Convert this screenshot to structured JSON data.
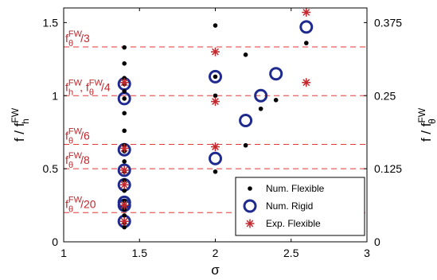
{
  "chart_data": {
    "type": "scatter",
    "xlabel": "σ",
    "ylabel": {
      "base": "f / f",
      "sup": "FW",
      "sub": "h"
    },
    "ylabel_right": {
      "base": "f / f",
      "sup": "FW",
      "sub": "θ"
    },
    "xlim": [
      1,
      3
    ],
    "ylim": [
      0,
      1.6
    ],
    "ylim_right": [
      0,
      0.4
    ],
    "xticks": [
      1,
      1.5,
      2,
      2.5,
      3
    ],
    "xtick_labels": [
      "1",
      "1.5",
      "2",
      "2.5",
      "3"
    ],
    "yticks": [
      0,
      0.5,
      1,
      1.5
    ],
    "ytick_labels": [
      "0",
      "0.5",
      "1",
      "1.5"
    ],
    "yticks_right": [
      0,
      0.125,
      0.25,
      0.375
    ],
    "ytick_labels_right": [
      "0",
      "0.125",
      "0.25",
      "0.375"
    ],
    "reference_lines": [
      {
        "y": 1.3333,
        "label": {
          "base": "f",
          "sup": "FW",
          "sub": "θ",
          "tail": "/3"
        }
      },
      {
        "y": 1.0,
        "label": {
          "base": "f",
          "sup": "FW",
          "sub": "h",
          "mid": ", f",
          "sup2": "FW",
          "sub2": "θ",
          "tail": "/4"
        }
      },
      {
        "y": 0.6667,
        "label": {
          "base": "f",
          "sup": "FW",
          "sub": "θ",
          "tail": "/6"
        }
      },
      {
        "y": 0.5,
        "label": {
          "base": "f",
          "sup": "FW",
          "sub": "θ",
          "tail": "/8"
        }
      },
      {
        "y": 0.2,
        "label": {
          "base": "f",
          "sup": "FW",
          "sub": "θ",
          "tail": "/20"
        }
      }
    ],
    "series": [
      {
        "name": "Num. Flexible",
        "marker": "dot",
        "color": "#000000",
        "points": [
          [
            1.4,
            1.33
          ],
          [
            1.4,
            1.22
          ],
          [
            1.4,
            1.12
          ],
          [
            1.4,
            1.08
          ],
          [
            1.4,
            1.03
          ],
          [
            1.4,
            0.98
          ],
          [
            1.4,
            0.88
          ],
          [
            1.4,
            0.76
          ],
          [
            1.4,
            0.66
          ],
          [
            1.4,
            0.62
          ],
          [
            1.4,
            0.55
          ],
          [
            1.4,
            0.48
          ],
          [
            1.4,
            0.42
          ],
          [
            1.4,
            0.35
          ],
          [
            1.4,
            0.28
          ],
          [
            1.4,
            0.25
          ],
          [
            1.4,
            0.22
          ],
          [
            1.4,
            0.18
          ],
          [
            1.4,
            0.13
          ],
          [
            1.4,
            0.1
          ],
          [
            2.0,
            1.48
          ],
          [
            2.0,
            1.13
          ],
          [
            2.0,
            1.0
          ],
          [
            2.0,
            0.48
          ],
          [
            2.2,
            1.28
          ],
          [
            2.2,
            0.66
          ],
          [
            2.3,
            0.91
          ],
          [
            2.4,
            0.97
          ],
          [
            2.6,
            1.36
          ]
        ]
      },
      {
        "name": "Num. Rigid",
        "marker": "circle",
        "color": "#1f2a8f",
        "points": [
          [
            1.4,
            1.08
          ],
          [
            1.4,
            0.98
          ],
          [
            1.4,
            0.63
          ],
          [
            1.4,
            0.49
          ],
          [
            1.4,
            0.39
          ],
          [
            1.4,
            0.27
          ],
          [
            1.4,
            0.25
          ],
          [
            1.4,
            0.14
          ],
          [
            2.0,
            1.13
          ],
          [
            2.0,
            0.57
          ],
          [
            2.2,
            0.83
          ],
          [
            2.3,
            1.0
          ],
          [
            2.4,
            1.15
          ],
          [
            2.6,
            1.47
          ]
        ]
      },
      {
        "name": "Exp. Flexible",
        "marker": "asterisk",
        "color": "#c0282d",
        "points": [
          [
            1.4,
            1.09
          ],
          [
            1.4,
            0.64
          ],
          [
            1.4,
            0.49
          ],
          [
            1.4,
            0.39
          ],
          [
            1.4,
            0.25
          ],
          [
            1.4,
            0.14
          ],
          [
            2.0,
            1.3
          ],
          [
            2.0,
            0.96
          ],
          [
            2.0,
            0.65
          ],
          [
            2.6,
            1.57
          ],
          [
            2.6,
            1.09
          ]
        ]
      }
    ],
    "legend_position": "bottom-right",
    "grid": false
  }
}
